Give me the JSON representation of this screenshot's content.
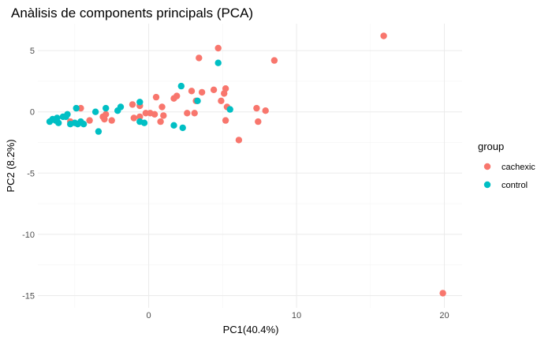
{
  "chart_data": {
    "type": "scatter",
    "title": "Anàlisis de components principals (PCA)",
    "xlabel": "PC1(40.4%)",
    "ylabel": "PC2 (8.2%)",
    "xlim": [
      -7.5,
      21.2
    ],
    "ylim": [
      -16.0,
      7.2
    ],
    "x_ticks": [
      0,
      10,
      20
    ],
    "y_ticks": [
      5,
      0,
      -5,
      -10,
      -15
    ],
    "grid": true,
    "legend": {
      "title": "group",
      "position": "right",
      "entries": [
        {
          "label": "cachexic",
          "color": "#F8766D"
        },
        {
          "label": "control",
          "color": "#00BFC4"
        }
      ]
    },
    "series": [
      {
        "name": "cachexic",
        "color": "#F8766D",
        "points": [
          [
            15.9,
            6.2
          ],
          [
            19.9,
            -14.8
          ],
          [
            8.5,
            4.2
          ],
          [
            4.7,
            5.2
          ],
          [
            3.4,
            4.4
          ],
          [
            4.4,
            1.8
          ],
          [
            5.2,
            1.9
          ],
          [
            5.1,
            1.5
          ],
          [
            3.6,
            1.6
          ],
          [
            2.9,
            1.7
          ],
          [
            1.9,
            1.3
          ],
          [
            1.7,
            1.1
          ],
          [
            0.5,
            1.2
          ],
          [
            4.9,
            0.9
          ],
          [
            5.3,
            0.4
          ],
          [
            3.2,
            0.9
          ],
          [
            0.9,
            0.4
          ],
          [
            7.3,
            0.3
          ],
          [
            7.9,
            0.1
          ],
          [
            2.6,
            -0.1
          ],
          [
            -0.6,
            0.5
          ],
          [
            -1.1,
            0.6
          ],
          [
            0.1,
            -0.1
          ],
          [
            -0.2,
            -0.1
          ],
          [
            0.4,
            -0.2
          ],
          [
            1.0,
            -0.3
          ],
          [
            -0.6,
            -0.4
          ],
          [
            -2.9,
            -0.2
          ],
          [
            -3.1,
            -0.4
          ],
          [
            -4.6,
            0.3
          ],
          [
            -3.0,
            -0.6
          ],
          [
            -2.5,
            -0.7
          ],
          [
            -4.0,
            -0.7
          ],
          [
            -5.3,
            -0.8
          ],
          [
            -1.0,
            -0.5
          ],
          [
            5.2,
            -0.7
          ],
          [
            7.4,
            -0.8
          ],
          [
            0.8,
            -0.8
          ],
          [
            6.1,
            -2.3
          ],
          [
            3.1,
            -0.1
          ]
        ]
      },
      {
        "name": "control",
        "color": "#00BFC4",
        "points": [
          [
            4.7,
            4.0
          ],
          [
            2.2,
            2.1
          ],
          [
            3.3,
            0.9
          ],
          [
            -0.6,
            0.8
          ],
          [
            -1.9,
            0.4
          ],
          [
            -2.9,
            0.3
          ],
          [
            -4.9,
            0.3
          ],
          [
            5.5,
            0.2
          ],
          [
            -2.1,
            0.1
          ],
          [
            -3.6,
            0.0
          ],
          [
            -5.5,
            -0.2
          ],
          [
            -5.8,
            -0.4
          ],
          [
            -6.2,
            -0.5
          ],
          [
            -6.3,
            -0.7
          ],
          [
            -6.5,
            -0.6
          ],
          [
            -6.7,
            -0.8
          ],
          [
            -6.1,
            -0.9
          ],
          [
            -5.3,
            -1.0
          ],
          [
            -5.0,
            -0.9
          ],
          [
            -4.8,
            -1.0
          ],
          [
            -4.6,
            -0.8
          ],
          [
            -4.4,
            -1.0
          ],
          [
            -0.6,
            -0.8
          ],
          [
            -0.3,
            -0.9
          ],
          [
            -3.4,
            -1.6
          ],
          [
            1.7,
            -1.1
          ],
          [
            2.3,
            -1.3
          ],
          [
            -5.6,
            -0.4
          ]
        ]
      }
    ]
  }
}
